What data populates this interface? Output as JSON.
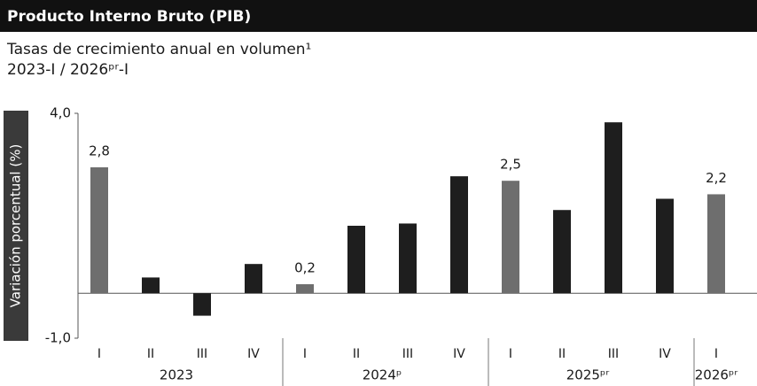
{
  "chart_data": {
    "type": "bar",
    "title": "Producto Interno Bruto (PIB)",
    "subtitle": "Tasas de crecimiento anual en volumen¹",
    "period": "2023-I / 2026ᵖʳ-I",
    "y_label": "Variación porcentual (%)",
    "categories": [
      "I",
      "II",
      "III",
      "IV",
      "I",
      "II",
      "III",
      "IV",
      "I",
      "II",
      "III",
      "IV",
      "I"
    ],
    "values": [
      2.8,
      0.35,
      -0.5,
      0.65,
      0.2,
      1.5,
      1.55,
      2.6,
      2.5,
      1.85,
      3.8,
      2.1,
      2.2
    ],
    "value_labels": [
      "2,8",
      null,
      null,
      null,
      "0,2",
      null,
      null,
      null,
      "2,5",
      null,
      null,
      null,
      "2,2"
    ],
    "colors": [
      "#6e6e6e",
      "#1e1e1e",
      "#1e1e1e",
      "#1e1e1e",
      "#6e6e6e",
      "#1e1e1e",
      "#1e1e1e",
      "#1e1e1e",
      "#6e6e6e",
      "#1e1e1e",
      "#1e1e1e",
      "#1e1e1e",
      "#6e6e6e"
    ],
    "groups": [
      {
        "label": "2023",
        "quarters": 4
      },
      {
        "label": "2024ᵖ",
        "quarters": 4
      },
      {
        "label": "2025ᵖʳ",
        "quarters": 4
      },
      {
        "label": "2026ᵖʳ",
        "quarters": 1
      }
    ],
    "ylim": [
      -1,
      4
    ],
    "yticks": [
      {
        "value": 4,
        "label": "4,0"
      },
      {
        "value": -1,
        "label": "-1,0"
      }
    ]
  }
}
